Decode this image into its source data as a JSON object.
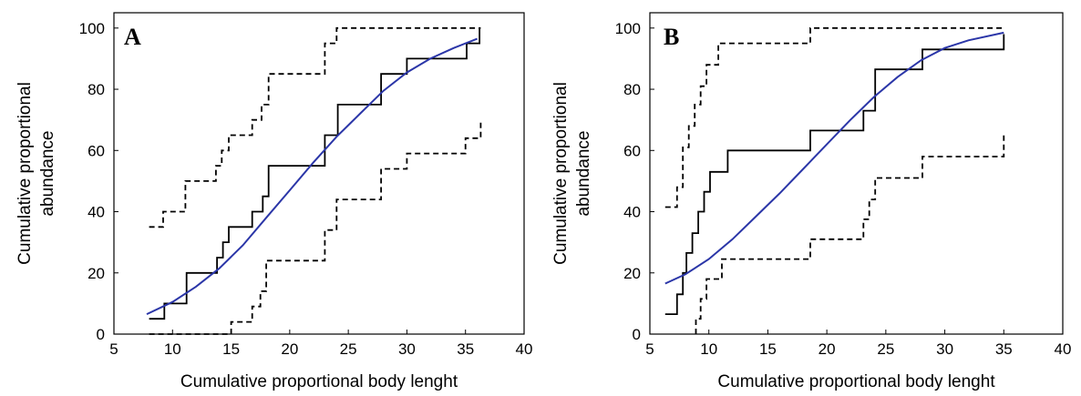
{
  "chart_data": [
    {
      "type": "line",
      "panel_label": "A",
      "xlabel": "Cumulative proportional body lenght",
      "ylabel": [
        "Cumulative proportional",
        "abundance"
      ],
      "xlim": [
        5,
        40
      ],
      "ylim": [
        0,
        105
      ],
      "xticks": [
        5,
        10,
        15,
        20,
        25,
        30,
        35,
        40
      ],
      "yticks": [
        0,
        20,
        40,
        60,
        80,
        100
      ],
      "grid": false,
      "legend": "none",
      "series": [
        {
          "style": "step-solid",
          "color": "#000000",
          "points": [
            [
              8,
              5
            ],
            [
              9.3,
              5
            ],
            [
              9.3,
              10
            ],
            [
              11.2,
              10
            ],
            [
              11.2,
              20
            ],
            [
              13.8,
              20
            ],
            [
              13.8,
              25
            ],
            [
              14.3,
              25
            ],
            [
              14.3,
              30
            ],
            [
              14.8,
              30
            ],
            [
              14.8,
              35
            ],
            [
              16.8,
              35
            ],
            [
              16.8,
              40
            ],
            [
              17.7,
              40
            ],
            [
              17.7,
              45
            ],
            [
              18.2,
              45
            ],
            [
              18.2,
              55
            ],
            [
              23,
              55
            ],
            [
              23,
              65
            ],
            [
              24.1,
              65
            ],
            [
              24.1,
              75
            ],
            [
              27.8,
              75
            ],
            [
              27.8,
              85
            ],
            [
              30,
              85
            ],
            [
              30,
              90
            ],
            [
              35.1,
              90
            ],
            [
              35.1,
              95
            ],
            [
              36.2,
              95
            ],
            [
              36.2,
              100
            ]
          ]
        },
        {
          "style": "smooth",
          "color": "#2b36a8",
          "points": [
            [
              7.8,
              6.5
            ],
            [
              10,
              10.5
            ],
            [
              12,
              15.5
            ],
            [
              14,
              21.5
            ],
            [
              16,
              29
            ],
            [
              18,
              38
            ],
            [
              20,
              47
            ],
            [
              22,
              56
            ],
            [
              24,
              64.5
            ],
            [
              26,
              72
            ],
            [
              28,
              79.5
            ],
            [
              30,
              85.5
            ],
            [
              32,
              90
            ],
            [
              34,
              93.5
            ],
            [
              36,
              96.5
            ]
          ]
        },
        {
          "style": "step-dashed",
          "color": "#000000",
          "points": [
            [
              8,
              35
            ],
            [
              9.2,
              35
            ],
            [
              9.2,
              40
            ],
            [
              11.1,
              40
            ],
            [
              11.1,
              50
            ],
            [
              13.7,
              50
            ],
            [
              13.7,
              55
            ],
            [
              14.2,
              55
            ],
            [
              14.2,
              60
            ],
            [
              14.8,
              60
            ],
            [
              14.8,
              65
            ],
            [
              16.8,
              65
            ],
            [
              16.8,
              70
            ],
            [
              17.6,
              70
            ],
            [
              17.6,
              75
            ],
            [
              18.2,
              75
            ],
            [
              18.2,
              85
            ],
            [
              23,
              85
            ],
            [
              23,
              95
            ],
            [
              24,
              95
            ],
            [
              24,
              100
            ],
            [
              36.3,
              100
            ]
          ]
        },
        {
          "style": "step-dashed",
          "color": "#000000",
          "points": [
            [
              8,
              0
            ],
            [
              15,
              0
            ],
            [
              15,
              4
            ],
            [
              16.8,
              4
            ],
            [
              16.8,
              9
            ],
            [
              17.5,
              9
            ],
            [
              17.5,
              14
            ],
            [
              18,
              14
            ],
            [
              18,
              24
            ],
            [
              23,
              24
            ],
            [
              23,
              34
            ],
            [
              24,
              34
            ],
            [
              24,
              44
            ],
            [
              27.8,
              44
            ],
            [
              27.8,
              54
            ],
            [
              30,
              54
            ],
            [
              30,
              59
            ],
            [
              35,
              59
            ],
            [
              35,
              64
            ],
            [
              36.3,
              64
            ],
            [
              36.3,
              70
            ]
          ]
        }
      ]
    },
    {
      "type": "line",
      "panel_label": "B",
      "xlabel": "Cumulative proportional body lenght",
      "ylabel": [
        "Cumulative proportional",
        "abundance"
      ],
      "xlim": [
        5,
        40
      ],
      "ylim": [
        0,
        105
      ],
      "xticks": [
        5,
        10,
        15,
        20,
        25,
        30,
        35,
        40
      ],
      "yticks": [
        0,
        20,
        40,
        60,
        80,
        100
      ],
      "grid": false,
      "legend": "none",
      "series": [
        {
          "style": "step-solid",
          "color": "#000000",
          "points": [
            [
              6.3,
              6.5
            ],
            [
              7.3,
              6.5
            ],
            [
              7.3,
              13
            ],
            [
              7.8,
              13
            ],
            [
              7.8,
              20
            ],
            [
              8.1,
              20
            ],
            [
              8.1,
              26.5
            ],
            [
              8.6,
              26.5
            ],
            [
              8.6,
              33
            ],
            [
              9.1,
              33
            ],
            [
              9.1,
              40
            ],
            [
              9.6,
              40
            ],
            [
              9.6,
              46.5
            ],
            [
              10.1,
              46.5
            ],
            [
              10.1,
              53
            ],
            [
              11.6,
              53
            ],
            [
              11.6,
              60
            ],
            [
              18.6,
              60
            ],
            [
              18.6,
              66.5
            ],
            [
              23.1,
              66.5
            ],
            [
              23.1,
              73
            ],
            [
              24.1,
              73
            ],
            [
              24.1,
              86.5
            ],
            [
              28.1,
              86.5
            ],
            [
              28.1,
              93
            ],
            [
              35,
              93
            ],
            [
              35,
              98
            ]
          ]
        },
        {
          "style": "smooth",
          "color": "#2b36a8",
          "points": [
            [
              6.3,
              16.5
            ],
            [
              8,
              19.5
            ],
            [
              10,
              24.5
            ],
            [
              12,
              31
            ],
            [
              14,
              38.5
            ],
            [
              16,
              46
            ],
            [
              18,
              54
            ],
            [
              20,
              62
            ],
            [
              22,
              70
            ],
            [
              24,
              77.5
            ],
            [
              26,
              84
            ],
            [
              28,
              89.5
            ],
            [
              30,
              93.5
            ],
            [
              32,
              96
            ],
            [
              35,
              98.5
            ]
          ]
        },
        {
          "style": "step-dashed",
          "color": "#000000",
          "points": [
            [
              6.3,
              41.5
            ],
            [
              7.3,
              41.5
            ],
            [
              7.3,
              48
            ],
            [
              7.8,
              48
            ],
            [
              7.8,
              61
            ],
            [
              8.3,
              61
            ],
            [
              8.3,
              68
            ],
            [
              8.8,
              68
            ],
            [
              8.8,
              75
            ],
            [
              9.3,
              75
            ],
            [
              9.3,
              81
            ],
            [
              9.8,
              81
            ],
            [
              9.8,
              88
            ],
            [
              10.8,
              88
            ],
            [
              10.8,
              95
            ],
            [
              18.6,
              95
            ],
            [
              18.6,
              100
            ],
            [
              35,
              100
            ]
          ]
        },
        {
          "style": "step-dashed",
          "color": "#000000",
          "points": [
            [
              8.9,
              0
            ],
            [
              8.9,
              5
            ],
            [
              9.3,
              5
            ],
            [
              9.3,
              11.5
            ],
            [
              9.8,
              11.5
            ],
            [
              9.8,
              18
            ],
            [
              11.1,
              18
            ],
            [
              11.1,
              24.5
            ],
            [
              18.6,
              24.5
            ],
            [
              18.6,
              31
            ],
            [
              23.1,
              31
            ],
            [
              23.1,
              37.5
            ],
            [
              23.6,
              37.5
            ],
            [
              23.6,
              44
            ],
            [
              24.1,
              44
            ],
            [
              24.1,
              51
            ],
            [
              28.1,
              51
            ],
            [
              28.1,
              58
            ],
            [
              35,
              58
            ],
            [
              35,
              65
            ]
          ]
        }
      ]
    }
  ]
}
